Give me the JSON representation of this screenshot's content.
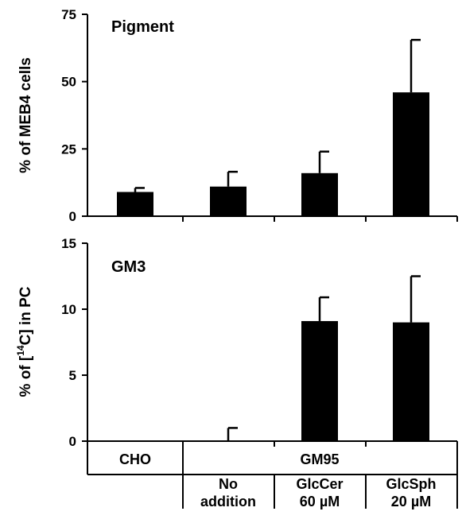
{
  "chart_data": [
    {
      "type": "bar",
      "panel_label": "Pigment",
      "ylabel": "% of MEB4 cells",
      "ylim": [
        0,
        75
      ],
      "yticks": [
        "0",
        "25",
        "50",
        "75"
      ],
      "categories": [
        "CHO",
        "GM95 No addition",
        "GM95 GlcCer 60 µM",
        "GM95 GlcSph 20 µM"
      ],
      "values": [
        9,
        11,
        16,
        46
      ],
      "error": [
        1.5,
        5.5,
        8,
        19.5
      ]
    },
    {
      "type": "bar",
      "panel_label": "GM3",
      "ylabel_prefix": "% of [",
      "ylabel_sup": "14",
      "ylabel_suffix": "C] in PC",
      "ylim": [
        0,
        15
      ],
      "yticks": [
        "0",
        "5",
        "10",
        "15"
      ],
      "categories": [
        "CHO",
        "GM95 No addition",
        "GM95 GlcCer 60 µM",
        "GM95 GlcSph 20 µM"
      ],
      "values": [
        0,
        0,
        9.1,
        9.0
      ],
      "error": [
        0,
        1.0,
        1.8,
        3.5
      ]
    }
  ],
  "table": {
    "cho": "CHO",
    "gm95": "GM95",
    "sub": [
      {
        "line1": "No",
        "line2": "addition"
      },
      {
        "line1": "GlcCer",
        "line2": "60 µM"
      },
      {
        "line1": "GlcSph",
        "line2": "20 µM"
      }
    ]
  }
}
